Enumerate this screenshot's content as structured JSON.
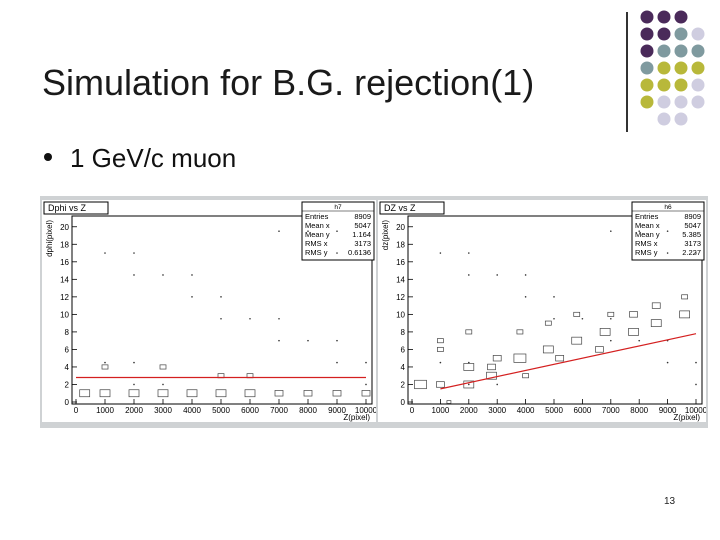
{
  "slide": {
    "title": "Simulation for B.G. rejection(1)",
    "bullet": "1 GeV/c muon",
    "page_number": "13",
    "decor_colors": {
      "purple": "#4a2a5a",
      "teal": "#7f9a9f",
      "olive": "#b8b83a",
      "lavender": "#cfcde0"
    }
  },
  "plots": {
    "left": {
      "title": "Dphi vs Z",
      "stats_name": "h7",
      "stats": [
        {
          "label": "Entries",
          "value": "8909"
        },
        {
          "label": "Mean x",
          "value": "5047"
        },
        {
          "label": "Mean y",
          "value": "1.164"
        },
        {
          "label": "RMS x",
          "value": "3173"
        },
        {
          "label": "RMS y",
          "value": "0.6136"
        }
      ],
      "ylabel": "dphi(pixel)",
      "xlabel": "Z(pixel)"
    },
    "right": {
      "title": "DZ vs Z",
      "stats_name": "h6",
      "stats": [
        {
          "label": "Entries",
          "value": "8909"
        },
        {
          "label": "Mean x",
          "value": "5047"
        },
        {
          "label": "Mean y",
          "value": "5.385"
        },
        {
          "label": "RMS x",
          "value": "3173"
        },
        {
          "label": "RMS y",
          "value": "2.227"
        }
      ],
      "ylabel": "dz(pixel)",
      "xlabel": "Z(pixel)"
    },
    "xticks": [
      "0",
      "1000",
      "2000",
      "3000",
      "4000",
      "5000",
      "6000",
      "7000",
      "8000",
      "9000",
      "10000"
    ],
    "yticks": [
      "0",
      "2",
      "4",
      "6",
      "8",
      "10",
      "12",
      "14",
      "16",
      "18",
      "20"
    ]
  },
  "chart_data": [
    {
      "type": "heatmap",
      "title": "Dphi vs Z",
      "xlabel": "Z(pixel)",
      "ylabel": "dphi(pixel)",
      "xlim": [
        0,
        10000
      ],
      "ylim": [
        0,
        21
      ],
      "cut_line": {
        "x": [
          0,
          10000
        ],
        "y": [
          2.8,
          2.8
        ]
      },
      "stats": {
        "Entries": 8909,
        "Mean x": 5047,
        "Mean y": 1.164,
        "RMS x": 3173,
        "RMS y": 0.6136
      }
    },
    {
      "type": "heatmap",
      "title": "DZ vs Z",
      "xlabel": "Z(pixel)",
      "ylabel": "dz(pixel)",
      "xlim": [
        0,
        10000
      ],
      "ylim": [
        0,
        21
      ],
      "cut_line": {
        "x": [
          1000,
          10000
        ],
        "y": [
          1.5,
          7.8
        ]
      },
      "stats": {
        "Entries": 8909,
        "Mean x": 5047,
        "Mean y": 5.385,
        "RMS x": 3173,
        "RMS y": 2.227
      }
    }
  ]
}
